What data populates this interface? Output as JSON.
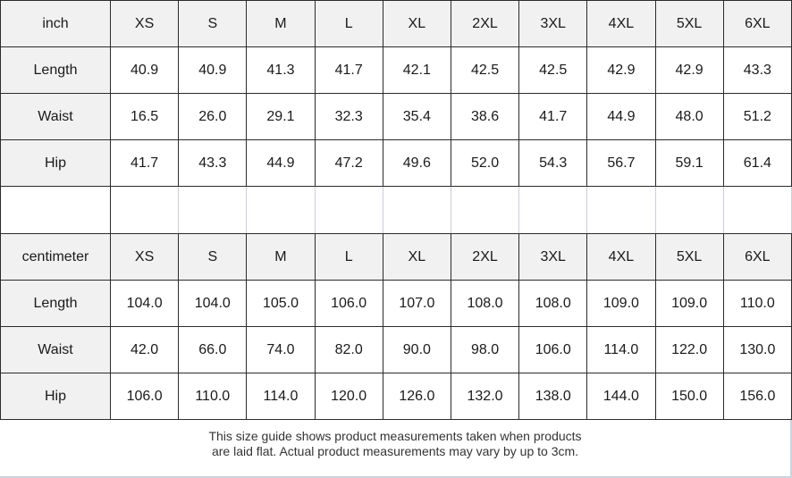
{
  "colors": {
    "table_border": "#2b2b2b",
    "header_background": "#f1f1f1",
    "light_divider": "#c8cfde",
    "text": "#1a1a1a",
    "footer_text": "#333333"
  },
  "chart_data": [
    {
      "type": "table",
      "unit": "inch",
      "columns": [
        "XS",
        "S",
        "M",
        "L",
        "XL",
        "2XL",
        "3XL",
        "4XL",
        "5XL",
        "6XL"
      ],
      "rows": [
        {
          "label": "Length",
          "values": [
            "40.9",
            "40.9",
            "41.3",
            "41.7",
            "42.1",
            "42.5",
            "42.5",
            "42.9",
            "42.9",
            "43.3"
          ]
        },
        {
          "label": "Waist",
          "values": [
            "16.5",
            "26.0",
            "29.1",
            "32.3",
            "35.4",
            "38.6",
            "41.7",
            "44.9",
            "48.0",
            "51.2"
          ]
        },
        {
          "label": "Hip",
          "values": [
            "41.7",
            "43.3",
            "44.9",
            "47.2",
            "49.6",
            "52.0",
            "54.3",
            "56.7",
            "59.1",
            "61.4"
          ]
        }
      ]
    },
    {
      "type": "table",
      "unit": "centimeter",
      "columns": [
        "XS",
        "S",
        "M",
        "L",
        "XL",
        "2XL",
        "3XL",
        "4XL",
        "5XL",
        "6XL"
      ],
      "rows": [
        {
          "label": "Length",
          "values": [
            "104.0",
            "104.0",
            "105.0",
            "106.0",
            "107.0",
            "108.0",
            "108.0",
            "109.0",
            "109.0",
            "110.0"
          ]
        },
        {
          "label": "Waist",
          "values": [
            "42.0",
            "66.0",
            "74.0",
            "82.0",
            "90.0",
            "98.0",
            "106.0",
            "114.0",
            "122.0",
            "130.0"
          ]
        },
        {
          "label": "Hip",
          "values": [
            "106.0",
            "110.0",
            "114.0",
            "120.0",
            "126.0",
            "132.0",
            "138.0",
            "144.0",
            "150.0",
            "156.0"
          ]
        }
      ]
    }
  ],
  "footer": {
    "line1": "This size guide shows product measurements taken when products",
    "line2": "are laid flat. Actual product measurements may vary by up to 3cm."
  }
}
